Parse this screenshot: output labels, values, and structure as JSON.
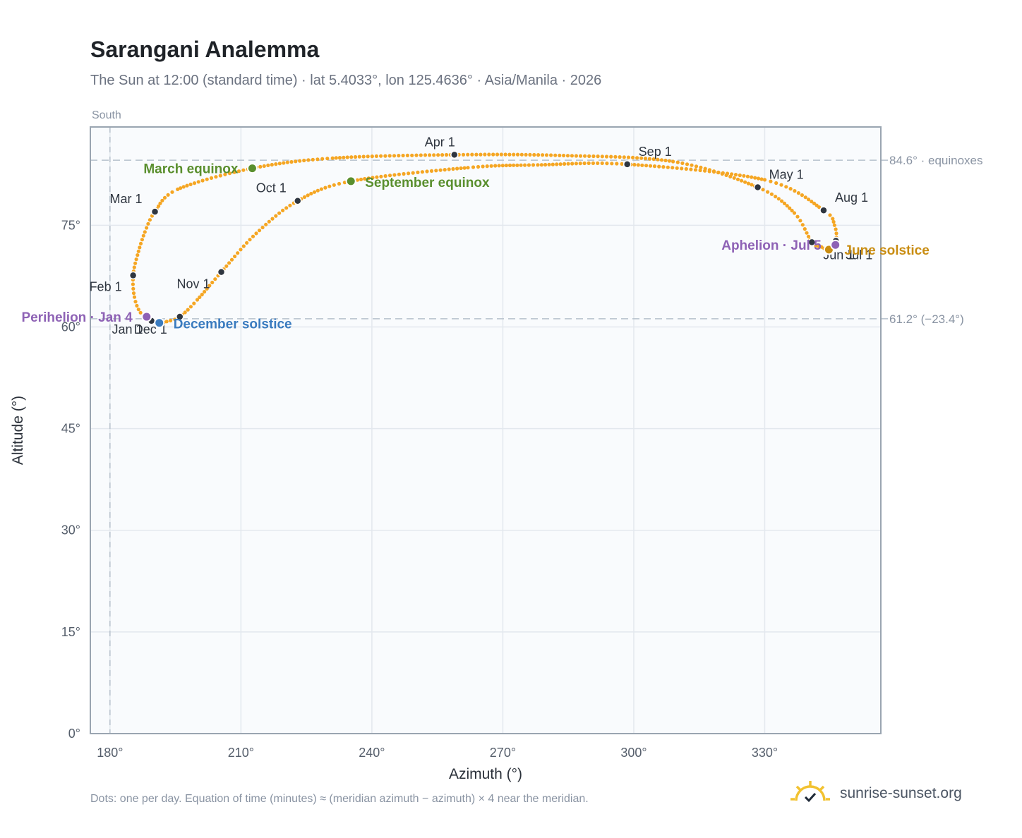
{
  "title": "Sarangani Analemma",
  "subtitle": "The Sun at 12:00 (standard time) · lat 5.4033°, lon 125.4636° · Asia/Manila · 2026",
  "footnote": "Dots: one per day. Equation of time (minutes) ≈ (meridian azimuth − azimuth) × 4 near the meridian.",
  "brand": {
    "name": "sunrise-sunset.org",
    "logo_icon": "sun-check-icon",
    "logo_color": "#f2c230"
  },
  "chart_data": {
    "type": "scatter",
    "title": "Sarangani Analemma",
    "xlabel": "Azimuth (°)",
    "ylabel": "Altitude (°)",
    "xlim": [
      175.5,
      356.6
    ],
    "ylim": [
      0,
      89.5
    ],
    "xticks": [
      180,
      210,
      240,
      270,
      300,
      330
    ],
    "xtick_labels": [
      "180°",
      "210°",
      "240°",
      "270°",
      "300°",
      "330°"
    ],
    "yticks": [
      0,
      15,
      30,
      45,
      60,
      75
    ],
    "ytick_labels": [
      "0°",
      "15°",
      "30°",
      "45°",
      "60°",
      "75°"
    ],
    "grid": true,
    "colors": {
      "path": "#f5a623",
      "month_marker": "#2f3640",
      "equinox": "#5a8f2e",
      "december_solstice": "#3a7bbf",
      "june_solstice": "#c98d12",
      "apsis": "#8e62b5",
      "reference_line": "#b6c1cc",
      "plot_background": "#f9fbfd",
      "plot_border": "#9aa5b1"
    },
    "meridian": {
      "azimuth": 180,
      "label": "South"
    },
    "reference_lines": [
      {
        "altitude": 84.6,
        "label": "84.6° · equinoxes"
      },
      {
        "altitude": 61.2,
        "label": "61.2° (−23.4°)"
      }
    ],
    "path_points": [
      {
        "date": "Jan 1",
        "az": 189.5,
        "alt": 60.9
      },
      {
        "date": "Jan 10",
        "az": 187.0,
        "alt": 62.1
      },
      {
        "date": "Jan 20",
        "az": 185.6,
        "alt": 64.4
      },
      {
        "date": "Feb 1",
        "az": 185.3,
        "alt": 67.6
      },
      {
        "date": "Feb 10",
        "az": 186.3,
        "alt": 70.6
      },
      {
        "date": "Feb 20",
        "az": 188.0,
        "alt": 74.0
      },
      {
        "date": "Mar 1",
        "az": 190.3,
        "alt": 77.0
      },
      {
        "date": "Mar 10",
        "az": 195.5,
        "alt": 80.3
      },
      {
        "date": "Mar 20",
        "az": 212.6,
        "alt": 83.4
      },
      {
        "date": "Mar 28",
        "az": 231.0,
        "alt": 84.9
      },
      {
        "date": "Apr 1",
        "az": 258.9,
        "alt": 85.4
      },
      {
        "date": "Apr 10",
        "az": 283.0,
        "alt": 85.3
      },
      {
        "date": "Apr 20",
        "az": 309.0,
        "alt": 84.4
      },
      {
        "date": "May 1",
        "az": 328.4,
        "alt": 80.6
      },
      {
        "date": "May 15",
        "az": 336.8,
        "alt": 76.8
      },
      {
        "date": "Jun 1",
        "az": 340.8,
        "alt": 72.5
      },
      {
        "date": "Jun 10",
        "az": 343.0,
        "alt": 71.8
      },
      {
        "date": "Jun 21",
        "az": 344.7,
        "alt": 71.4
      },
      {
        "date": "Jul 1",
        "az": 346.3,
        "alt": 72.7
      },
      {
        "date": "Jul 15",
        "az": 346.0,
        "alt": 75.0
      },
      {
        "date": "Aug 1",
        "az": 343.5,
        "alt": 77.2
      },
      {
        "date": "Aug 15",
        "az": 330.0,
        "alt": 81.7
      },
      {
        "date": "Sep 1",
        "az": 298.5,
        "alt": 84.0
      },
      {
        "date": "Sep 10",
        "az": 278.0,
        "alt": 83.9
      },
      {
        "date": "Sep 15",
        "az": 262.0,
        "alt": 83.5
      },
      {
        "date": "Sep 23",
        "az": 235.2,
        "alt": 81.5
      },
      {
        "date": "Oct 1",
        "az": 223.0,
        "alt": 78.6
      },
      {
        "date": "Oct 15",
        "az": 213.5,
        "alt": 73.8
      },
      {
        "date": "Nov 1",
        "az": 205.5,
        "alt": 68.1
      },
      {
        "date": "Nov 15",
        "az": 200.0,
        "alt": 64.0
      },
      {
        "date": "Dec 1",
        "az": 196.0,
        "alt": 61.5
      },
      {
        "date": "Dec 10",
        "az": 193.0,
        "alt": 60.8
      },
      {
        "date": "Dec 21",
        "az": 191.3,
        "alt": 60.6
      },
      {
        "date": "Dec 31",
        "az": 189.5,
        "alt": 60.9
      }
    ],
    "month_markers": [
      {
        "label": "Jan 1",
        "az": 189.5,
        "alt": 60.9
      },
      {
        "label": "Feb 1",
        "az": 185.3,
        "alt": 67.6
      },
      {
        "label": "Mar 1",
        "az": 190.3,
        "alt": 77.0
      },
      {
        "label": "Apr 1",
        "az": 258.9,
        "alt": 85.4
      },
      {
        "label": "May 1",
        "az": 328.4,
        "alt": 80.6
      },
      {
        "label": "Jun 1",
        "az": 340.8,
        "alt": 72.5
      },
      {
        "label": "Jul 1",
        "az": 346.3,
        "alt": 72.7
      },
      {
        "label": "Aug 1",
        "az": 343.5,
        "alt": 77.2
      },
      {
        "label": "Sep 1",
        "az": 298.5,
        "alt": 84.0
      },
      {
        "label": "Oct 1",
        "az": 223.0,
        "alt": 78.6
      },
      {
        "label": "Nov 1",
        "az": 205.5,
        "alt": 68.1
      },
      {
        "label": "Dec 1",
        "az": 196.0,
        "alt": 61.5
      }
    ],
    "events": [
      {
        "label": "March equinox",
        "az": 212.6,
        "alt": 83.4,
        "color_key": "equinox"
      },
      {
        "label": "September equinox",
        "az": 235.2,
        "alt": 81.5,
        "color_key": "equinox"
      },
      {
        "label": "June solstice",
        "az": 344.7,
        "alt": 71.4,
        "color_key": "june_solstice"
      },
      {
        "label": "December solstice",
        "az": 191.3,
        "alt": 60.6,
        "color_key": "december_solstice"
      },
      {
        "label": "Perihelion · Jan 4",
        "az": 188.4,
        "alt": 61.5,
        "color_key": "apsis"
      },
      {
        "label": "Aphelion · Jul 5",
        "az": 346.2,
        "alt": 72.1,
        "color_key": "apsis"
      }
    ]
  }
}
